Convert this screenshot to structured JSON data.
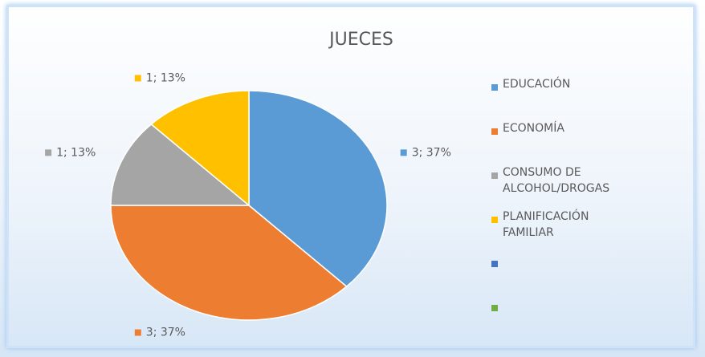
{
  "chart_data": {
    "type": "pie",
    "title": "JUECES",
    "categories": [
      "EDUCACIÓN",
      "ECONOMÍA",
      "CONSUMO DE ALCOHOL/DROGAS",
      "PLANIFICACIÓN FAMILIAR",
      null,
      null
    ],
    "values": [
      3,
      3,
      1,
      1,
      null,
      null
    ],
    "value_labels": [
      "3; 37%",
      "3; 37%",
      "1; 13%",
      "1; 13%",
      null,
      null
    ],
    "colors": [
      "#5b9bd5",
      "#ed7d31",
      "#a5a5a5",
      "#ffc000",
      "#4472c4",
      "#70ad47"
    ],
    "legend": "right"
  }
}
